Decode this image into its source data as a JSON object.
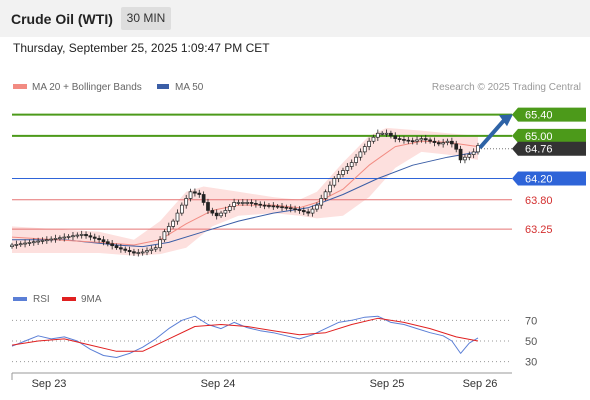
{
  "header": {
    "title": "Crude Oil (WTI)",
    "timeframe": "30 MIN",
    "datetime": "Thursday, September 25, 2025 1:09:47 PM CET"
  },
  "legend": {
    "items": [
      {
        "label": "MA 20 + Bollinger Bands",
        "color": "#f28b82"
      },
      {
        "label": "MA 50",
        "color": "#3b5ea6"
      }
    ],
    "credit": "Research © 2025 Trading Central"
  },
  "colors": {
    "up_candle": "#1a1a1a",
    "down_candle": "#1a1a1a",
    "bb_fill": "#fde0de",
    "ma20": "#f28b82",
    "ma50": "#3b5ea6",
    "resistance": "#4c9a1a",
    "support": "#e57373",
    "pivot": "#2e64d8",
    "current_price": "#333333",
    "arrow": "#2e63a6",
    "rsi": "#5b7fd6",
    "rsi_ma": "#e02020"
  },
  "chart_data": [
    {
      "type": "candlestick",
      "name": "price",
      "ylim": [
        62.5,
        65.75
      ],
      "x_labels": [
        "Sep 23",
        "Sep 24",
        "Sep 25",
        "Sep 26"
      ],
      "levels": [
        {
          "label": "65.40",
          "value": 65.4,
          "kind": "resistance"
        },
        {
          "label": "65.00",
          "value": 65.0,
          "kind": "resistance"
        },
        {
          "label": "64.76",
          "value": 64.76,
          "kind": "current"
        },
        {
          "label": "64.20",
          "value": 64.2,
          "kind": "pivot"
        },
        {
          "label": "63.80",
          "value": 63.8,
          "kind": "support"
        },
        {
          "label": "63.25",
          "value": 63.25,
          "kind": "support"
        }
      ],
      "arrow": {
        "from": 64.8,
        "to": 65.35
      },
      "close_path": [
        [
          0,
          62.95
        ],
        [
          4,
          63.0
        ],
        [
          8,
          63.05
        ],
        [
          12,
          63.1
        ],
        [
          16,
          63.15
        ],
        [
          20,
          63.05
        ],
        [
          24,
          62.9
        ],
        [
          28,
          62.8
        ],
        [
          30,
          62.82
        ],
        [
          33,
          62.9
        ],
        [
          35,
          63.2
        ],
        [
          37,
          63.4
        ],
        [
          39,
          63.7
        ],
        [
          41,
          63.95
        ],
        [
          43,
          63.9
        ],
        [
          45,
          63.6
        ],
        [
          47,
          63.5
        ],
        [
          49,
          63.6
        ],
        [
          51,
          63.75
        ],
        [
          54,
          63.75
        ],
        [
          57,
          63.7
        ],
        [
          60,
          63.68
        ],
        [
          63,
          63.65
        ],
        [
          66,
          63.6
        ],
        [
          68,
          63.55
        ],
        [
          70,
          63.7
        ],
        [
          72,
          63.95
        ],
        [
          74,
          64.2
        ],
        [
          76,
          64.35
        ],
        [
          78,
          64.5
        ],
        [
          80,
          64.7
        ],
        [
          82,
          64.9
        ],
        [
          84,
          65.05
        ],
        [
          86,
          65.05
        ],
        [
          88,
          64.95
        ],
        [
          90,
          64.92
        ],
        [
          92,
          64.9
        ],
        [
          94,
          64.95
        ],
        [
          96,
          64.9
        ],
        [
          98,
          64.85
        ],
        [
          100,
          64.9
        ],
        [
          101,
          64.85
        ],
        [
          102,
          64.75
        ],
        [
          103,
          64.55
        ],
        [
          104,
          64.6
        ],
        [
          105,
          64.65
        ],
        [
          106,
          64.7
        ],
        [
          107,
          64.82
        ]
      ],
      "ma20_path": [
        [
          0,
          63.1
        ],
        [
          10,
          63.05
        ],
        [
          20,
          63.0
        ],
        [
          28,
          62.95
        ],
        [
          34,
          63.05
        ],
        [
          40,
          63.35
        ],
        [
          46,
          63.6
        ],
        [
          52,
          63.7
        ],
        [
          60,
          63.7
        ],
        [
          66,
          63.65
        ],
        [
          70,
          63.75
        ],
        [
          76,
          64.0
        ],
        [
          82,
          64.45
        ],
        [
          88,
          64.8
        ],
        [
          94,
          64.9
        ],
        [
          100,
          64.88
        ],
        [
          107,
          64.8
        ]
      ],
      "ma50_path": [
        [
          0,
          63.05
        ],
        [
          12,
          63.05
        ],
        [
          24,
          62.95
        ],
        [
          30,
          62.92
        ],
        [
          36,
          63.0
        ],
        [
          44,
          63.2
        ],
        [
          52,
          63.4
        ],
        [
          60,
          63.55
        ],
        [
          68,
          63.65
        ],
        [
          76,
          63.9
        ],
        [
          84,
          64.2
        ],
        [
          92,
          64.45
        ],
        [
          100,
          64.6
        ],
        [
          107,
          64.7
        ]
      ],
      "bb_upper": [
        [
          0,
          63.3
        ],
        [
          10,
          63.25
        ],
        [
          20,
          63.2
        ],
        [
          28,
          63.05
        ],
        [
          34,
          63.4
        ],
        [
          40,
          63.95
        ],
        [
          44,
          64.05
        ],
        [
          52,
          63.95
        ],
        [
          60,
          63.85
        ],
        [
          66,
          63.8
        ],
        [
          70,
          63.95
        ],
        [
          76,
          64.5
        ],
        [
          82,
          65.0
        ],
        [
          86,
          65.15
        ],
        [
          94,
          65.1
        ],
        [
          100,
          65.05
        ],
        [
          107,
          65.0
        ]
      ],
      "bb_lower": [
        [
          0,
          62.8
        ],
        [
          10,
          62.8
        ],
        [
          20,
          62.8
        ],
        [
          28,
          62.75
        ],
        [
          34,
          62.78
        ],
        [
          40,
          62.9
        ],
        [
          46,
          63.3
        ],
        [
          52,
          63.5
        ],
        [
          60,
          63.55
        ],
        [
          66,
          63.5
        ],
        [
          70,
          63.45
        ],
        [
          76,
          63.5
        ],
        [
          82,
          63.85
        ],
        [
          88,
          64.4
        ],
        [
          94,
          64.7
        ],
        [
          100,
          64.65
        ],
        [
          107,
          64.55
        ]
      ]
    },
    {
      "type": "line",
      "name": "rsi-panel",
      "ylim": [
        20,
        80
      ],
      "levels": [
        {
          "label": "70",
          "value": 70
        },
        {
          "label": "50",
          "value": 50
        },
        {
          "label": "30",
          "value": 30
        }
      ],
      "series": [
        {
          "name": "RSI",
          "key": "rsi",
          "values": [
            [
              0,
              45
            ],
            [
              3,
              50
            ],
            [
              6,
              55
            ],
            [
              9,
              52
            ],
            [
              12,
              54
            ],
            [
              15,
              50
            ],
            [
              18,
              42
            ],
            [
              21,
              36
            ],
            [
              24,
              34
            ],
            [
              27,
              38
            ],
            [
              30,
              44
            ],
            [
              33,
              52
            ],
            [
              36,
              62
            ],
            [
              39,
              70
            ],
            [
              42,
              74
            ],
            [
              45,
              66
            ],
            [
              48,
              62
            ],
            [
              51,
              68
            ],
            [
              54,
              63
            ],
            [
              57,
              60
            ],
            [
              60,
              58
            ],
            [
              63,
              55
            ],
            [
              66,
              52
            ],
            [
              69,
              56
            ],
            [
              72,
              62
            ],
            [
              75,
              68
            ],
            [
              78,
              70
            ],
            [
              81,
              73
            ],
            [
              84,
              74
            ],
            [
              87,
              68
            ],
            [
              90,
              66
            ],
            [
              93,
              62
            ],
            [
              96,
              58
            ],
            [
              99,
              55
            ],
            [
              101,
              50
            ],
            [
              103,
              38
            ],
            [
              105,
              48
            ],
            [
              107,
              53
            ]
          ]
        },
        {
          "name": "9MA",
          "key": "rsi_ma",
          "values": [
            [
              0,
              46
            ],
            [
              6,
              50
            ],
            [
              12,
              52
            ],
            [
              18,
              46
            ],
            [
              24,
              40
            ],
            [
              30,
              40
            ],
            [
              36,
              52
            ],
            [
              42,
              64
            ],
            [
              48,
              66
            ],
            [
              54,
              64
            ],
            [
              60,
              60
            ],
            [
              66,
              56
            ],
            [
              72,
              58
            ],
            [
              78,
              66
            ],
            [
              84,
              72
            ],
            [
              90,
              68
            ],
            [
              96,
              62
            ],
            [
              102,
              54
            ],
            [
              107,
              50
            ]
          ]
        }
      ]
    }
  ]
}
